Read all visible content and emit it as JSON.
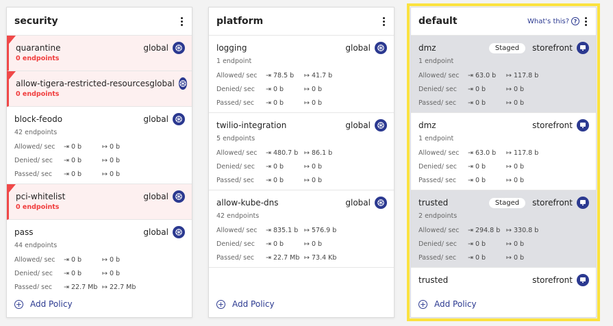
{
  "stat_labels": {
    "allowed": "Allowed/ sec",
    "denied": "Denied/ sec",
    "passed": "Passed/ sec"
  },
  "add_policy": "Add Policy",
  "colors": {
    "accent": "#2b3990",
    "alert": "#f04848",
    "highlight": "#fbe23f",
    "staged_bg": "#dfe0e4"
  },
  "tiers": [
    {
      "title": "security",
      "highlighted": false,
      "policies": [
        {
          "name": "quarantine",
          "scope": "global",
          "icon": "kubernetes-icon",
          "endpoints": "0 endpoints",
          "alert": true
        },
        {
          "name": "allow-tigera-restricted-resources",
          "scope": "global",
          "icon": "kubernetes-icon",
          "endpoints": "0 endpoints",
          "alert": true
        },
        {
          "name": "block-feodo",
          "scope": "global",
          "icon": "kubernetes-icon",
          "endpoints": "42 endpoints",
          "stats": {
            "allowed": [
              "0 b",
              "0 b"
            ],
            "denied": [
              "0 b",
              "0 b"
            ],
            "passed": [
              "0 b",
              "0 b"
            ]
          }
        },
        {
          "name": "pci-whitelist",
          "scope": "global",
          "icon": "kubernetes-icon",
          "endpoints": "0 endpoints",
          "alert": true
        },
        {
          "name": "pass",
          "scope": "global",
          "icon": "kubernetes-icon",
          "endpoints": "44 endpoints",
          "stats": {
            "allowed": [
              "0 b",
              "0 b"
            ],
            "denied": [
              "0 b",
              "0 b"
            ],
            "passed": [
              "22.7 Mb",
              "22.7 Mb"
            ]
          }
        }
      ]
    },
    {
      "title": "platform",
      "highlighted": false,
      "policies": [
        {
          "name": "logging",
          "scope": "global",
          "icon": "kubernetes-icon",
          "endpoints": "1 endpoint",
          "stats": {
            "allowed": [
              "78.5 b",
              "41.7 b"
            ],
            "denied": [
              "0 b",
              "0 b"
            ],
            "passed": [
              "0 b",
              "0 b"
            ]
          }
        },
        {
          "name": "twilio-integration",
          "scope": "global",
          "icon": "kubernetes-icon",
          "endpoints": "5 endpoints",
          "stats": {
            "allowed": [
              "480.7 b",
              "86.1 b"
            ],
            "denied": [
              "0 b",
              "0 b"
            ],
            "passed": [
              "0 b",
              "0 b"
            ]
          }
        },
        {
          "name": "allow-kube-dns",
          "scope": "global",
          "icon": "kubernetes-icon",
          "endpoints": "42 endpoints",
          "stats": {
            "allowed": [
              "835.1 b",
              "576.9 b"
            ],
            "denied": [
              "0 b",
              "0 b"
            ],
            "passed": [
              "22.7 Mb",
              "73.4 Kb"
            ]
          }
        }
      ]
    },
    {
      "title": "default",
      "highlighted": true,
      "help": "What's this?",
      "policies": [
        {
          "name": "dmz",
          "badge": "Staged",
          "scope": "storefront",
          "icon": "namespace-icon",
          "endpoints": "1 endpoint",
          "stats": {
            "allowed": [
              "63.0 b",
              "117.8 b"
            ],
            "denied": [
              "0 b",
              "0 b"
            ],
            "passed": [
              "0 b",
              "0 b"
            ]
          }
        },
        {
          "name": "dmz",
          "scope": "storefront",
          "icon": "namespace-icon",
          "endpoints": "1 endpoint",
          "stats": {
            "allowed": [
              "63.0 b",
              "117.8 b"
            ],
            "denied": [
              "0 b",
              "0 b"
            ],
            "passed": [
              "0 b",
              "0 b"
            ]
          }
        },
        {
          "name": "trusted",
          "badge": "Staged",
          "scope": "storefront",
          "icon": "namespace-icon",
          "endpoints": "2 endpoints",
          "stats": {
            "allowed": [
              "294.8 b",
              "330.8 b"
            ],
            "denied": [
              "0 b",
              "0 b"
            ],
            "passed": [
              "0 b",
              "0 b"
            ]
          }
        },
        {
          "name": "trusted",
          "scope": "storefront",
          "icon": "namespace-icon",
          "endpoints": "",
          "stats": {
            "allowed": [
              "",
              ""
            ],
            "denied": [
              "",
              ""
            ],
            "passed": [
              "",
              ""
            ]
          }
        }
      ]
    }
  ]
}
